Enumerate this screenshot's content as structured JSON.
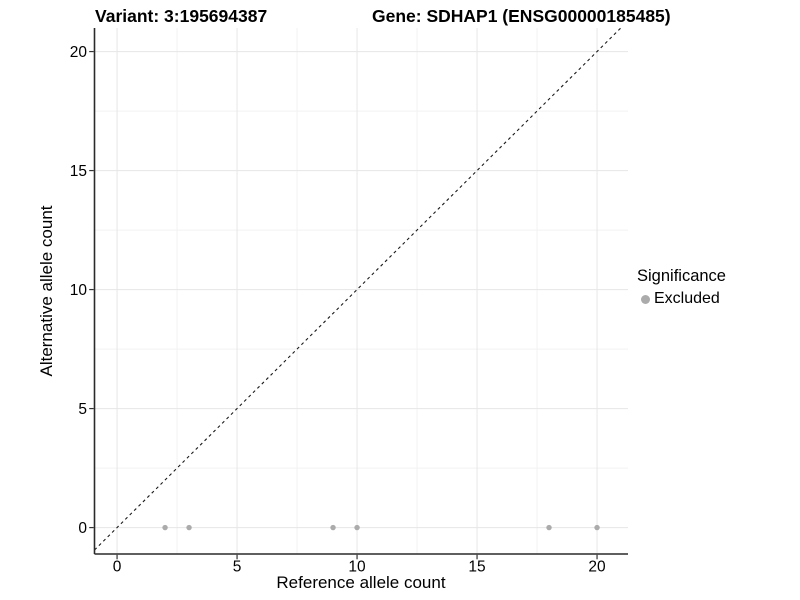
{
  "header": {
    "variant_title": "Variant: 3:195694387",
    "gene_title": "Gene: SDHAP1 (ENSG00000185485)"
  },
  "chart_data": {
    "type": "scatter",
    "xlabel": "Reference allele count",
    "ylabel": "Alternative allele count",
    "x_ticks": [
      0,
      5,
      10,
      15,
      20
    ],
    "y_ticks": [
      0,
      5,
      10,
      15,
      20
    ],
    "x_minor_gridlines": [
      2.5,
      7.5,
      12.5,
      17.5
    ],
    "y_minor_gridlines": [
      2.5,
      7.5,
      12.5,
      17.5
    ],
    "xlim": [
      -0.94,
      21.29
    ],
    "ylim": [
      -1.11,
      20.99
    ],
    "grid": {
      "background": "#ffffff",
      "major_color": "#e6e6e6",
      "minor_color": "#f2f2f2"
    },
    "axis": {
      "line_color": "#2a2a2a",
      "tick_color": "#333333",
      "text_color": "#000000"
    },
    "identity_line": {
      "equation": "y = x",
      "style": "dashed",
      "color": "#1a1a1a"
    },
    "series": [
      {
        "name": "Excluded",
        "color": "#ababab",
        "points": [
          [
            2,
            0
          ],
          [
            3,
            0
          ],
          [
            9,
            0
          ],
          [
            10,
            0
          ],
          [
            18,
            0
          ],
          [
            20,
            0
          ]
        ]
      }
    ],
    "legend": {
      "title": "Significance",
      "position": "right",
      "entries": [
        {
          "label": "Excluded",
          "color": "#ababab"
        }
      ]
    }
  }
}
